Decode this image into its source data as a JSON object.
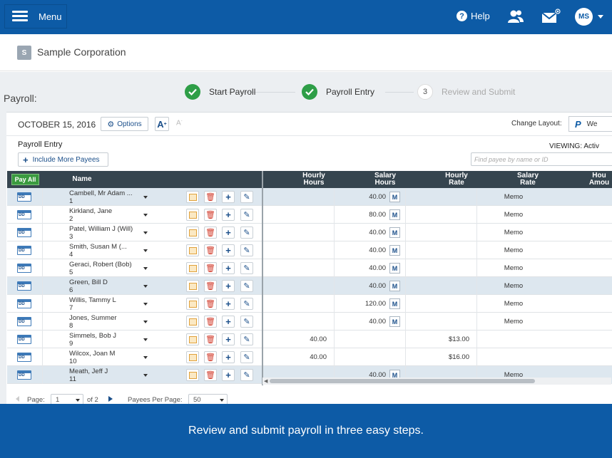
{
  "topbar": {
    "menu_label": "Menu",
    "help_label": "Help",
    "avatar_initials": "MS",
    "bg_color": "#0d5ba6"
  },
  "company": {
    "badge": "S",
    "name": "Sample Corporation"
  },
  "page": {
    "title": "Payroll:"
  },
  "steps": [
    {
      "label": "Start Payroll",
      "state": "done"
    },
    {
      "label": "Payroll Entry",
      "state": "done"
    },
    {
      "number": "3",
      "label": "Review and Submit",
      "state": "pending"
    }
  ],
  "toolbar": {
    "date": "OCTOBER 15, 2016",
    "options_label": "Options",
    "font_big": "A",
    "font_small": "A",
    "change_layout_label": "Change Layout:",
    "layout_value": "We"
  },
  "entry": {
    "title": "Payroll Entry",
    "include_label": "Include More Payees",
    "viewing_label": "VIEWING: Activ",
    "find_placeholder": "Find payee by name or ID"
  },
  "grid": {
    "pay_all_label": "Pay All",
    "headers": {
      "name": "Name",
      "hourly_hours_1": "Hourly",
      "hourly_hours_2": "Hours",
      "salary_hours_1": "Salary",
      "salary_hours_2": "Hours",
      "hourly_rate_1": "Hourly",
      "hourly_rate_2": "Rate",
      "salary_rate_1": "Salary",
      "salary_rate_2": "Rate",
      "hourly_amount_1": "Hou",
      "hourly_amount_2": "Amou"
    },
    "m_label": "M",
    "rows": [
      {
        "name": "Cambell, Mr Adam ...",
        "id": "1",
        "hourly_hours": "",
        "salary_hours": "40.00",
        "hourly_rate": "",
        "salary_rate": "Memo"
      },
      {
        "name": "Kirkland, Jane",
        "id": "2",
        "hourly_hours": "",
        "salary_hours": "80.00",
        "hourly_rate": "",
        "salary_rate": "Memo"
      },
      {
        "name": "Patel, William J (Will)",
        "id": "3",
        "hourly_hours": "",
        "salary_hours": "40.00",
        "hourly_rate": "",
        "salary_rate": "Memo"
      },
      {
        "name": "Smith, Susan M (...",
        "id": "4",
        "hourly_hours": "",
        "salary_hours": "40.00",
        "hourly_rate": "",
        "salary_rate": "Memo"
      },
      {
        "name": "Geraci, Robert (Bob)",
        "id": "5",
        "hourly_hours": "",
        "salary_hours": "40.00",
        "hourly_rate": "",
        "salary_rate": "Memo"
      },
      {
        "name": "Green, Bill D",
        "id": "6",
        "hourly_hours": "",
        "salary_hours": "40.00",
        "hourly_rate": "",
        "salary_rate": "Memo"
      },
      {
        "name": "Willis, Tammy L",
        "id": "7",
        "hourly_hours": "",
        "salary_hours": "120.00",
        "hourly_rate": "",
        "salary_rate": "Memo"
      },
      {
        "name": "Jones, Summer",
        "id": "8",
        "hourly_hours": "",
        "salary_hours": "40.00",
        "hourly_rate": "",
        "salary_rate": "Memo"
      },
      {
        "name": "Simmels, Bob J",
        "id": "9",
        "hourly_hours": "40.00",
        "salary_hours": "",
        "hourly_rate": "$13.00",
        "salary_rate": ""
      },
      {
        "name": "Wilcox, Joan M",
        "id": "10",
        "hourly_hours": "40.00",
        "salary_hours": "",
        "hourly_rate": "$16.00",
        "salary_rate": ""
      },
      {
        "name": "Meath, Jeff J",
        "id": "11",
        "hourly_hours": "",
        "salary_hours": "40.00",
        "hourly_rate": "",
        "salary_rate": "Memo"
      }
    ]
  },
  "pager": {
    "page_label": "Page:",
    "page_value": "1",
    "of_label": "of 2",
    "per_page_label": "Payees Per Page:",
    "per_page_value": "50"
  },
  "banner": {
    "text": "Review and submit payroll in three easy steps."
  }
}
